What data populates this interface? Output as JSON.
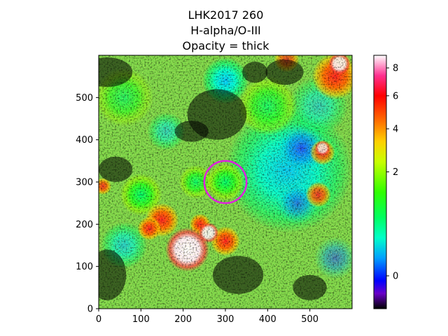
{
  "chart_data": {
    "type": "heatmap",
    "title_lines": [
      "LHK2017 260",
      "H-alpha/O-III",
      "Opacity = thick"
    ],
    "xlabel": "",
    "ylabel": "",
    "xlim": [
      0,
      600
    ],
    "ylim": [
      0,
      600
    ],
    "x_ticks": [
      0,
      100,
      200,
      300,
      400,
      500
    ],
    "y_ticks": [
      0,
      100,
      200,
      300,
      400,
      500
    ],
    "colormap": "gist_ncar-like (black → violet → blue → cyan → green → yellow → orange → red → white)",
    "colorbar": {
      "scale": "nonlinear (approximately square-root)",
      "range": [
        -0.2,
        9.0
      ],
      "ticks": [
        0,
        2,
        4,
        6,
        8
      ]
    },
    "grid": false,
    "regions": [
      {
        "description": "white saturated region",
        "x": 205,
        "y": 130,
        "level": "white (>9)"
      },
      {
        "description": "red/orange clump",
        "x": 300,
        "y": 160,
        "level": 6
      },
      {
        "description": "red/orange clump",
        "x": 130,
        "y": 205,
        "level": 6
      },
      {
        "description": "green clump",
        "x": 300,
        "y": 295,
        "level": 2
      },
      {
        "description": "green clump",
        "x": 100,
        "y": 265,
        "level": 2
      },
      {
        "description": "cyan/blue extended area",
        "x": 440,
        "y": 340,
        "level": 1.3
      },
      {
        "description": "cyan clump",
        "x": 290,
        "y": 540,
        "level": 1.3
      },
      {
        "description": "red area",
        "x": 560,
        "y": 560,
        "level": 6
      }
    ],
    "annotation": {
      "shape": "circle",
      "color": "#e020e0",
      "center": [
        300,
        300
      ],
      "radius": 50
    }
  }
}
